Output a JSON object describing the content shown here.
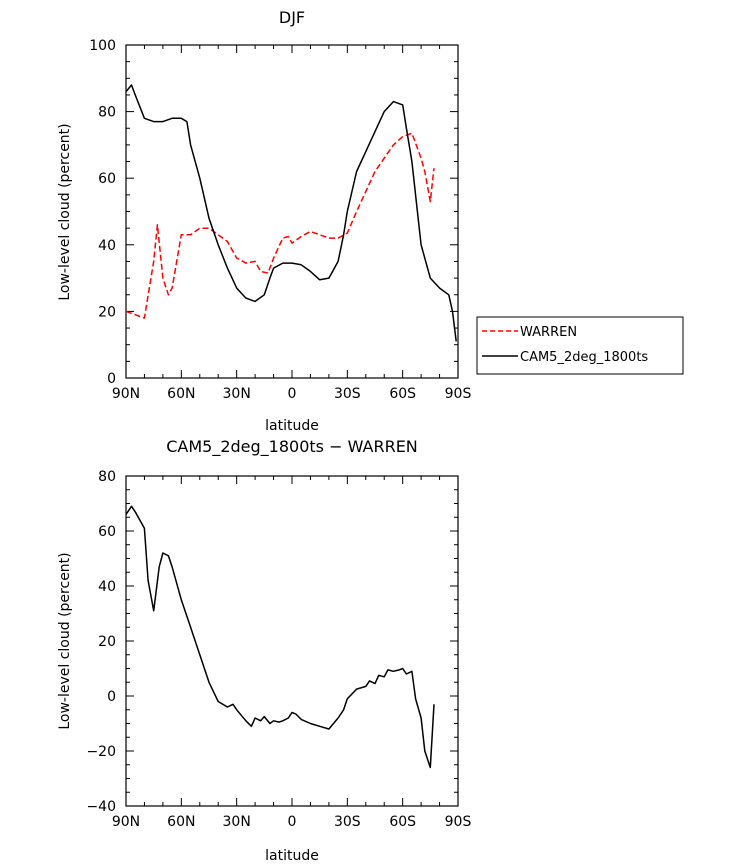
{
  "chart_data": [
    {
      "type": "line",
      "title": "DJF",
      "xlabel": "latitude",
      "ylabel": "Low-level cloud (percent)",
      "xlim": [
        90,
        -90
      ],
      "ylim": [
        0,
        100
      ],
      "xticks": [
        90,
        60,
        30,
        0,
        -30,
        -60,
        -90
      ],
      "xtick_labels": [
        "90N",
        "60N",
        "30N",
        "0",
        "30S",
        "60S",
        "90S"
      ],
      "yticks": [
        0,
        20,
        40,
        60,
        80,
        100
      ],
      "ytick_labels": [
        "0",
        "20",
        "40",
        "60",
        "80",
        "100"
      ],
      "legend": "outside-right",
      "series": [
        {
          "name": "WARREN",
          "color": "#ff0000",
          "dash": "dashed",
          "x": [
            90,
            85,
            80,
            75,
            73,
            70,
            67,
            65,
            60,
            55,
            50,
            45,
            40,
            35,
            30,
            25,
            20,
            17,
            13,
            10,
            5,
            2,
            0,
            -5,
            -10,
            -15,
            -20,
            -25,
            -30,
            -35,
            -40,
            -45,
            -50,
            -55,
            -60,
            -65,
            -70,
            -72,
            -75,
            -77
          ],
          "y": [
            20,
            19,
            18,
            35,
            46,
            30,
            25,
            27,
            43,
            43,
            45,
            45,
            43,
            41,
            36,
            34.5,
            35,
            32,
            31.5,
            36,
            42,
            42.5,
            40.5,
            42.5,
            44,
            43,
            42,
            42,
            43.5,
            50,
            56,
            62,
            66,
            70,
            72.5,
            73.5,
            66,
            62,
            53,
            63
          ]
        },
        {
          "name": "CAM5_2deg_1800ts",
          "color": "#000000",
          "dash": "solid",
          "x": [
            90,
            87,
            85,
            80,
            75,
            70,
            65,
            60,
            57,
            55,
            50,
            45,
            40,
            35,
            30,
            25,
            20,
            15,
            12,
            10,
            5,
            0,
            -5,
            -10,
            -15,
            -20,
            -23,
            -25,
            -28,
            -30,
            -35,
            -40,
            -45,
            -50,
            -55,
            -60,
            -62,
            -65,
            -68,
            -70,
            -75,
            -80,
            -85,
            -87,
            -89
          ],
          "y": [
            86,
            88,
            85,
            78,
            77,
            77,
            78,
            78,
            77,
            70,
            60,
            48,
            40,
            33,
            27,
            24,
            23,
            25,
            30,
            33,
            34.5,
            34.5,
            34,
            32,
            29.5,
            30,
            33,
            35,
            43,
            50,
            62,
            68,
            74,
            80,
            83,
            82,
            75,
            65,
            50,
            40,
            30,
            27,
            25,
            20,
            11
          ]
        }
      ]
    },
    {
      "type": "line",
      "title": "CAM5_2deg_1800ts − WARREN",
      "xlabel": "latitude",
      "ylabel": "Low-level cloud (percent)",
      "xlim": [
        90,
        -90
      ],
      "ylim": [
        -40,
        80
      ],
      "xticks": [
        90,
        60,
        30,
        0,
        -30,
        -60,
        -90
      ],
      "xtick_labels": [
        "90N",
        "60N",
        "30N",
        "0",
        "30S",
        "60S",
        "90S"
      ],
      "yticks": [
        -40,
        -20,
        0,
        20,
        40,
        60,
        80
      ],
      "ytick_labels": [
        "−40",
        "−20",
        "0",
        "20",
        "40",
        "60",
        "80"
      ],
      "series": [
        {
          "color": "#000000",
          "dash": "solid",
          "x": [
            90,
            87,
            85,
            80,
            78,
            75,
            72,
            70,
            67,
            65,
            60,
            55,
            50,
            45,
            40,
            35,
            32,
            30,
            25,
            22,
            20,
            17,
            15,
            12,
            10,
            7,
            5,
            2,
            0,
            -2,
            -5,
            -10,
            -15,
            -20,
            -25,
            -28,
            -30,
            -35,
            -40,
            -42,
            -45,
            -47,
            -50,
            -52,
            -55,
            -58,
            -60,
            -62,
            -65,
            -67,
            -70,
            -72,
            -75,
            -77
          ],
          "y": [
            66,
            69,
            67,
            61,
            42,
            31,
            47,
            52,
            51,
            47,
            35,
            25,
            15,
            5,
            -2,
            -4,
            -3,
            -5,
            -9,
            -11,
            -8,
            -9,
            -7.5,
            -10,
            -9,
            -9.5,
            -9,
            -8,
            -6,
            -6.5,
            -8.5,
            -10,
            -11,
            -12,
            -8,
            -5,
            -1,
            2.5,
            3.5,
            5.5,
            4.5,
            7.5,
            7,
            9.5,
            9,
            9.5,
            10,
            8,
            9,
            -1,
            -8,
            -20,
            -26,
            -3
          ]
        }
      ]
    }
  ]
}
